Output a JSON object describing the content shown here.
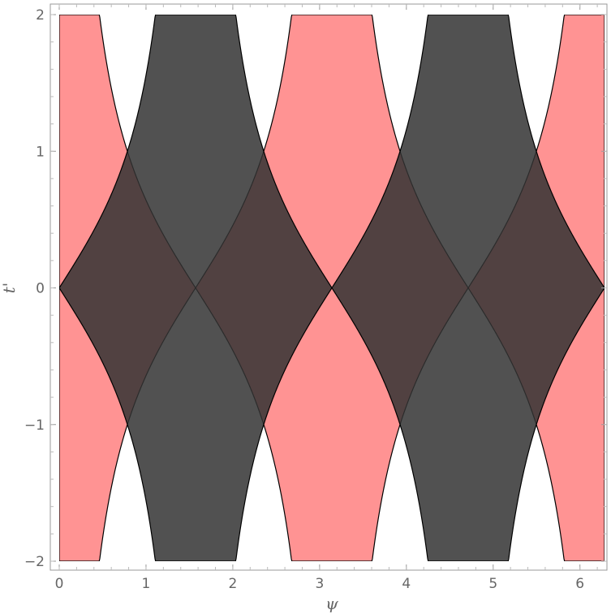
{
  "chart_data": {
    "type": "area",
    "title": "",
    "xlabel": "ψ",
    "ylabel": "t'",
    "xlim": [
      0,
      6.2832
    ],
    "ylim": [
      -2,
      2
    ],
    "x_ticks": [
      0,
      1,
      2,
      3,
      4,
      5,
      6
    ],
    "x_tick_labels": [
      "0",
      "1",
      "2",
      "3",
      "4",
      "5",
      "6"
    ],
    "y_ticks": [
      -2,
      -1,
      0,
      1,
      2
    ],
    "y_tick_labels": [
      "−2",
      "−1",
      "0",
      "1",
      "2"
    ],
    "grid": false,
    "legend": "none",
    "regions": [
      {
        "description": "region where |t'| ≤ cot(ψ mod π/2 ... ) bounded by sec-like curves, red",
        "color": "#ff8080",
        "opacity": 0.85,
        "phase": 0
      },
      {
        "description": "same region shifted by π/2, dark gray",
        "color": "#333333",
        "opacity": 0.85,
        "phase": 1.5708
      }
    ],
    "boundary_curve": "|t'| = 1/|tan(ψ)|",
    "boundary_color": "#000000"
  }
}
